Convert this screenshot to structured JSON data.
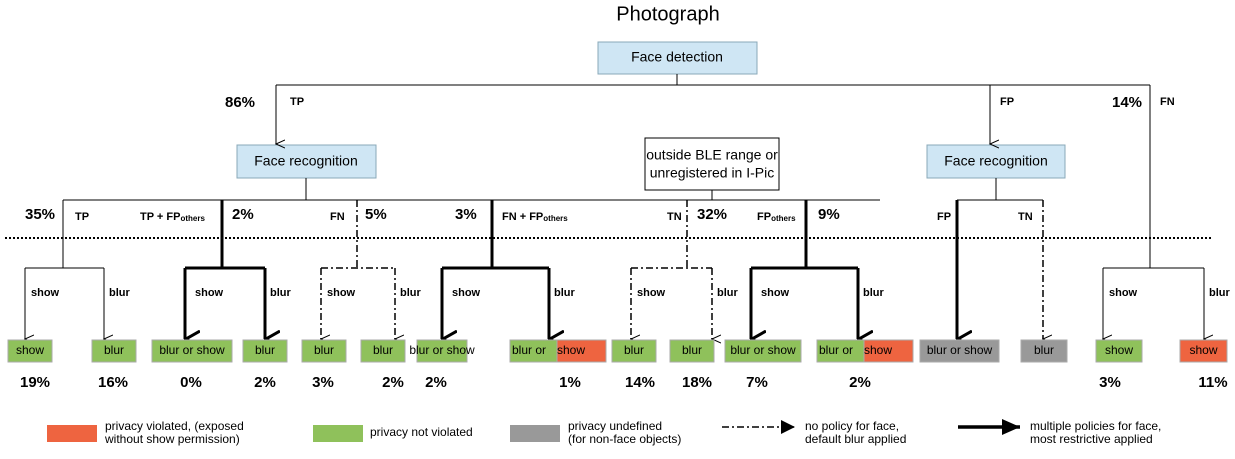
{
  "title": "Photograph",
  "nodes": {
    "face_detection": "Face detection",
    "face_recognition_left": "Face recognition",
    "face_recognition_right": "Face recognition",
    "ble": [
      "outside BLE range or",
      "unregistered in I-Pic"
    ]
  },
  "level1": [
    {
      "pct": "86%",
      "label": "TP"
    },
    {
      "label": "FP"
    },
    {
      "pct": "14%",
      "label": "FN"
    }
  ],
  "level2": [
    {
      "pct": "35%",
      "label": "TP"
    },
    {
      "pct": "2%",
      "label": "TP + FP",
      "sub": "others"
    },
    {
      "pct": "5%",
      "label": "FN"
    },
    {
      "pct": "3%",
      "label": "FN + FP",
      "sub": "others"
    },
    {
      "pct": "32%",
      "label": "TN"
    },
    {
      "pct": "9%",
      "label": "FP",
      "sub": "others"
    },
    {
      "label": "FP"
    },
    {
      "label": "TN"
    }
  ],
  "branch_labels": [
    "show",
    "blur",
    "show",
    "blur",
    "show",
    "blur",
    "show",
    "blur",
    "show",
    "blur",
    "show",
    "blur",
    "show",
    "blur"
  ],
  "leaves": [
    {
      "text": [
        "show"
      ],
      "pct": "19%"
    },
    {
      "text": [
        "blur"
      ],
      "pct": "16%"
    },
    {
      "text": [
        "blur or show"
      ],
      "pct": "0%"
    },
    {
      "text": [
        "blur"
      ],
      "pct": "2%"
    },
    {
      "text": [
        "blur"
      ],
      "pct": "3%"
    },
    {
      "text": [
        "blur"
      ],
      "pct": "2%"
    },
    {
      "text": [
        "blur or show"
      ],
      "pct": "2%"
    },
    {
      "text": [
        "blur or",
        "show"
      ],
      "pct": "1%"
    },
    {
      "text": [
        "blur"
      ],
      "pct": "14%"
    },
    {
      "text": [
        "blur"
      ],
      "pct": "18%"
    },
    {
      "text": [
        "blur or show"
      ],
      "pct": "7%"
    },
    {
      "text": [
        "blur or",
        "show"
      ],
      "pct": "2%"
    },
    {
      "text": [
        "blur or show"
      ]
    },
    {
      "text": [
        "blur"
      ]
    },
    {
      "text": [
        "show"
      ],
      "pct": "3%"
    },
    {
      "text": [
        "show"
      ],
      "pct": "11%"
    }
  ],
  "legend": [
    [
      "privacy violated, (exposed",
      "without show permission)"
    ],
    [
      "privacy not violated"
    ],
    [
      "privacy undefined",
      "(for non-face objects)"
    ],
    [
      "no policy for face,",
      "default blur applied"
    ],
    [
      "multiple policies for face,",
      "most restrictive applied"
    ]
  ]
}
